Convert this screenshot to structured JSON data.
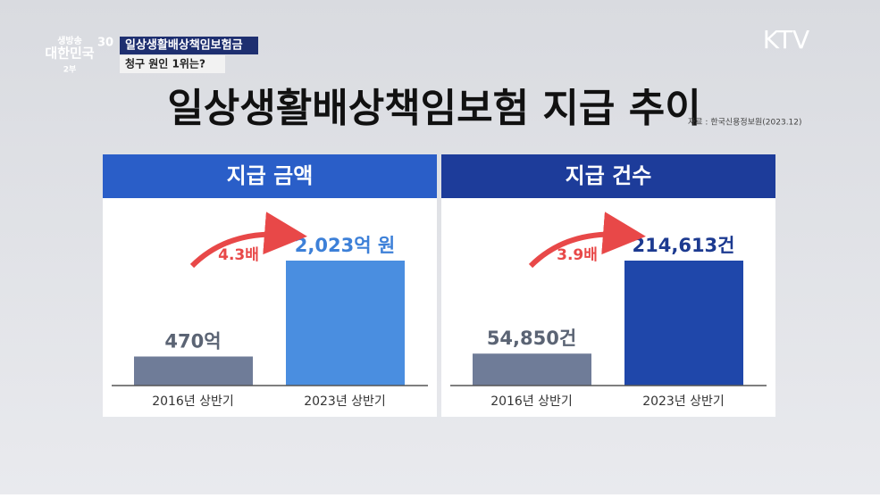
{
  "header": {
    "program": [
      "생방송",
      "대한민국",
      "30",
      "2부"
    ],
    "headline": [
      "일상생활배상책임보험금",
      "청구 원인 1위는?"
    ],
    "channel": "KTV"
  },
  "page": {
    "title": "일상생활배상책임보험 지급 추이",
    "source": "자료 : 한국신용정보원(2023.12)"
  },
  "chart_data": [
    {
      "type": "bar",
      "title": "지급 금액",
      "categories": [
        "2016년 상반기",
        "2023년 상반기"
      ],
      "values": [
        470,
        2023
      ],
      "value_labels": [
        "470억",
        "2,023억 원"
      ],
      "colors": [
        "#6f7c98",
        "#4a8ee0"
      ],
      "label_colors": [
        "#5b6474",
        "#3d80d8"
      ],
      "header_color": "#2a5ec8",
      "annotation": "4.3배"
    },
    {
      "type": "bar",
      "title": "지급 건수",
      "categories": [
        "2016년 상반기",
        "2023년 상반기"
      ],
      "values": [
        54850,
        214613
      ],
      "value_labels": [
        "54,850건",
        "214,613건"
      ],
      "colors": [
        "#6f7c98",
        "#1f47aa"
      ],
      "label_colors": [
        "#5b6474",
        "#1c3a90"
      ],
      "header_color": "#1d3c9a",
      "annotation": "3.9배"
    }
  ]
}
